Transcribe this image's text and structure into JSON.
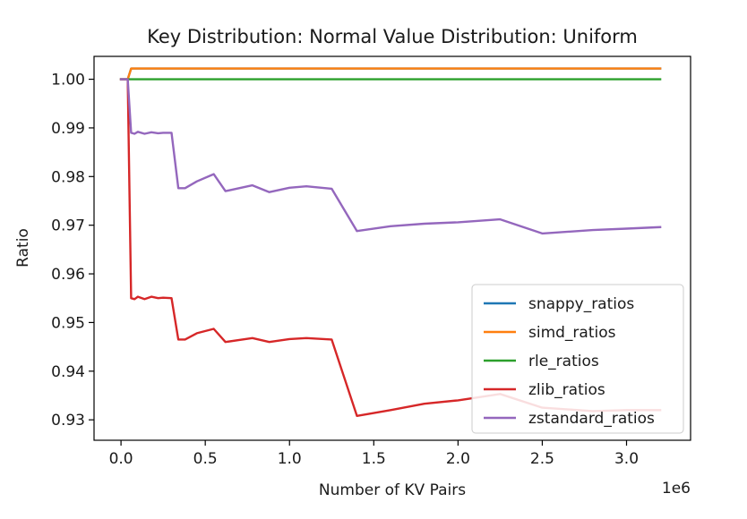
{
  "chart_data": {
    "type": "line",
    "title": "Key Distribution: Normal Value Distribution: Uniform",
    "xlabel": "Number of KV Pairs",
    "ylabel": "Ratio",
    "x_offset_label": "1e6",
    "xlim": [
      -0.16,
      3.38
    ],
    "ylim": [
      0.9258,
      1.0047
    ],
    "x_ticks": [
      0.0,
      0.5,
      1.0,
      1.5,
      2.0,
      2.5,
      3.0
    ],
    "x_tick_labels": [
      "0.0",
      "0.5",
      "1.0",
      "1.5",
      "2.0",
      "2.5",
      "3.0"
    ],
    "y_ticks": [
      0.93,
      0.94,
      0.95,
      0.96,
      0.97,
      0.98,
      0.99,
      1.0
    ],
    "y_tick_labels": [
      "0.93",
      "0.94",
      "0.95",
      "0.96",
      "0.97",
      "0.98",
      "0.99",
      "1.00"
    ],
    "grid": false,
    "legend_position": "lower-right",
    "series": [
      {
        "name": "snappy_ratios",
        "color": "#1f77b4",
        "x": [
          0.0,
          0.04,
          0.06,
          0.08,
          3.2
        ],
        "y": [
          1.0,
          1.0,
          1.0022,
          1.0022,
          1.0022
        ]
      },
      {
        "name": "simd_ratios",
        "color": "#ff7f0e",
        "x": [
          0.0,
          0.04,
          0.06,
          0.08,
          3.2
        ],
        "y": [
          1.0,
          1.0,
          1.0022,
          1.0022,
          1.0022
        ]
      },
      {
        "name": "rle_ratios",
        "color": "#2ca02c",
        "x": [
          0.0,
          0.04,
          0.06,
          0.08,
          3.2
        ],
        "y": [
          1.0,
          1.0,
          1.0,
          1.0,
          1.0
        ]
      },
      {
        "name": "zlib_ratios",
        "color": "#d62728",
        "x": [
          0.0,
          0.04,
          0.06,
          0.08,
          0.1,
          0.14,
          0.18,
          0.22,
          0.25,
          0.3,
          0.34,
          0.38,
          0.45,
          0.55,
          0.62,
          0.78,
          0.88,
          1.0,
          1.1,
          1.25,
          1.4,
          1.6,
          1.8,
          2.0,
          2.25,
          2.5,
          2.8,
          3.0,
          3.2
        ],
        "y": [
          1.0,
          1.0,
          0.955,
          0.9548,
          0.9553,
          0.9548,
          0.9553,
          0.955,
          0.9551,
          0.955,
          0.9465,
          0.9465,
          0.9478,
          0.9487,
          0.946,
          0.9468,
          0.946,
          0.9466,
          0.9468,
          0.9465,
          0.9308,
          0.932,
          0.9333,
          0.934,
          0.9353,
          0.9325,
          0.9318,
          0.932,
          0.932
        ]
      },
      {
        "name": "zstandard_ratios",
        "color": "#9467bd",
        "x": [
          0.0,
          0.04,
          0.06,
          0.08,
          0.1,
          0.14,
          0.18,
          0.22,
          0.25,
          0.3,
          0.34,
          0.38,
          0.45,
          0.55,
          0.62,
          0.78,
          0.88,
          1.0,
          1.1,
          1.25,
          1.4,
          1.6,
          1.8,
          2.0,
          2.25,
          2.5,
          2.8,
          3.0,
          3.2
        ],
        "y": [
          1.0,
          1.0,
          0.989,
          0.9888,
          0.9892,
          0.9888,
          0.9891,
          0.9889,
          0.989,
          0.989,
          0.9776,
          0.9776,
          0.979,
          0.9805,
          0.977,
          0.9782,
          0.9768,
          0.9777,
          0.978,
          0.9775,
          0.9688,
          0.9698,
          0.9703,
          0.9706,
          0.9712,
          0.9683,
          0.969,
          0.9693,
          0.9696
        ]
      }
    ]
  }
}
